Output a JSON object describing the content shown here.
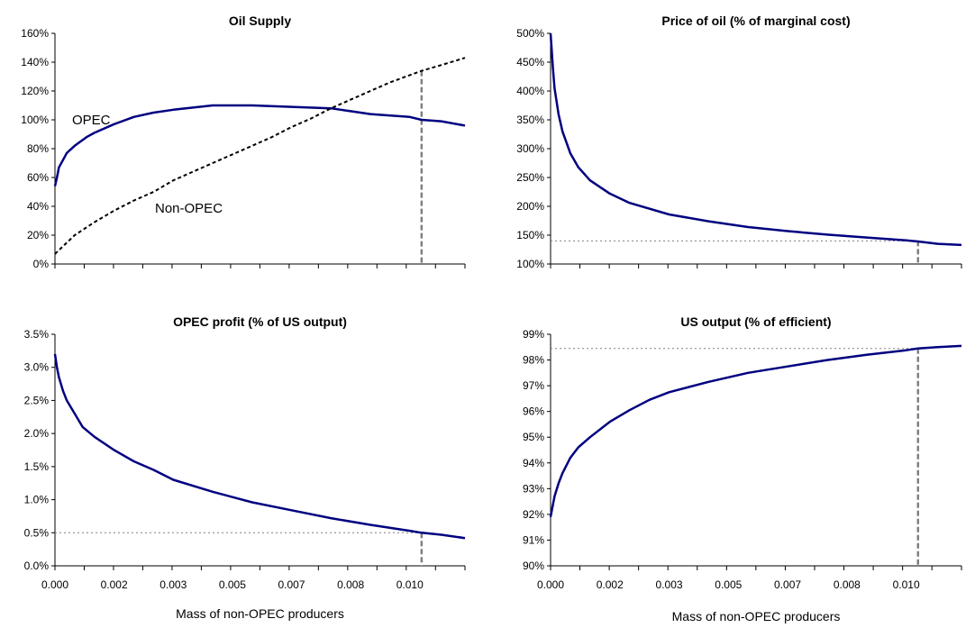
{
  "figure": {
    "colors": {
      "primary_line": "#000080",
      "secondary_line": "#000000",
      "marker_line": "#808080",
      "reference_line": "#808080"
    }
  },
  "chart_data": [
    {
      "type": "line",
      "title": "Oil Supply",
      "xlabel": "",
      "ylabel": "",
      "xlim": [
        0,
        0.0104
      ],
      "ylim": [
        0,
        160
      ],
      "x_tick_labels": [],
      "y_tick_labels": [
        "0%",
        "20%",
        "40%",
        "60%",
        "80%",
        "100%",
        "120%",
        "140%",
        "160%"
      ],
      "grid": false,
      "annotations": [
        "OPEC",
        "Non-OPEC"
      ],
      "marker_x": 0.0093,
      "series": [
        {
          "name": "OPEC",
          "style": "solid",
          "x": [
            0,
            5e-05,
            0.0001,
            0.0002,
            0.0003,
            0.0005,
            0.0008,
            0.001,
            0.0015,
            0.002,
            0.0025,
            0.003,
            0.004,
            0.005,
            0.006,
            0.007,
            0.0075,
            0.008,
            0.009,
            0.0093,
            0.0098,
            0.0104
          ],
          "values": [
            54,
            60,
            67,
            72,
            77,
            82,
            88,
            91,
            97,
            102,
            105,
            107,
            110,
            110,
            109,
            108,
            106,
            104,
            102,
            100,
            99,
            96
          ]
        },
        {
          "name": "Non-OPEC",
          "style": "dashed",
          "x": [
            0,
            0.0005,
            0.001,
            0.0015,
            0.002,
            0.0025,
            0.003,
            0.0035,
            0.004,
            0.0045,
            0.005,
            0.0055,
            0.006,
            0.0065,
            0.007,
            0.0075,
            0.008,
            0.0085,
            0.009,
            0.0093,
            0.0098,
            0.0104
          ],
          "values": [
            7,
            20,
            29,
            37,
            44,
            50,
            58,
            64,
            70,
            76,
            82,
            88,
            95,
            101,
            108,
            114,
            120,
            126,
            131,
            134,
            138,
            143
          ]
        }
      ]
    },
    {
      "type": "line",
      "title": "Price of oil (% of marginal cost)",
      "xlabel": "",
      "ylabel": "",
      "xlim": [
        0,
        0.0104
      ],
      "ylim": [
        100,
        500
      ],
      "x_tick_labels": [],
      "y_tick_labels": [
        "100%",
        "150%",
        "200%",
        "250%",
        "300%",
        "350%",
        "400%",
        "450%",
        "500%"
      ],
      "grid": false,
      "marker_x": 0.0093,
      "reference_y": 140,
      "series": [
        {
          "style": "solid",
          "x": [
            0,
            3e-05,
            6e-05,
            0.0001,
            0.0002,
            0.0003,
            0.0005,
            0.0007,
            0.001,
            0.0015,
            0.002,
            0.003,
            0.004,
            0.005,
            0.006,
            0.007,
            0.008,
            0.009,
            0.0093,
            0.0098,
            0.0104
          ],
          "values": [
            500,
            470,
            440,
            405,
            360,
            330,
            292,
            268,
            245,
            222,
            206,
            186,
            174,
            164,
            157,
            151,
            146,
            141,
            139,
            135,
            133
          ]
        }
      ]
    },
    {
      "type": "line",
      "title": "OPEC profit (% of US output)",
      "xlabel": "Mass of non-OPEC producers",
      "ylabel": "",
      "xlim": [
        0,
        0.0104
      ],
      "ylim": [
        0,
        3.5
      ],
      "x_tick_labels": [
        "0.000",
        "0.002",
        "0.003",
        "0.005",
        "0.007",
        "0.008",
        "0.010"
      ],
      "y_tick_labels": [
        "0.0%",
        "0.5%",
        "1.0%",
        "1.5%",
        "2.0%",
        "2.5%",
        "3.0%",
        "3.5%"
      ],
      "grid": false,
      "marker_x": 0.0093,
      "reference_y": 0.5,
      "series": [
        {
          "style": "solid",
          "x": [
            0,
            5e-05,
            0.0001,
            0.0002,
            0.0003,
            0.0005,
            0.0007,
            0.001,
            0.0015,
            0.002,
            0.0025,
            0.003,
            0.004,
            0.005,
            0.006,
            0.007,
            0.008,
            0.009,
            0.0093,
            0.0098,
            0.0104
          ],
          "values": [
            3.2,
            3.0,
            2.85,
            2.65,
            2.5,
            2.3,
            2.1,
            1.95,
            1.75,
            1.58,
            1.45,
            1.3,
            1.12,
            0.96,
            0.84,
            0.72,
            0.62,
            0.53,
            0.5,
            0.47,
            0.42
          ]
        }
      ]
    },
    {
      "type": "line",
      "title": "US output (% of efficient)",
      "xlabel": "Mass of non-OPEC producers",
      "ylabel": "",
      "xlim": [
        0,
        0.0104
      ],
      "ylim": [
        90,
        99
      ],
      "x_tick_labels": [
        "0.000",
        "0.002",
        "0.003",
        "0.005",
        "0.007",
        "0.008",
        "0.010"
      ],
      "y_tick_labels": [
        "90%",
        "91%",
        "92%",
        "93%",
        "94%",
        "95%",
        "96%",
        "97%",
        "98%",
        "99%"
      ],
      "grid": false,
      "marker_x": 0.0093,
      "reference_y": 98.45,
      "series": [
        {
          "style": "solid",
          "x": [
            0,
            5e-05,
            0.0001,
            0.0002,
            0.0003,
            0.0005,
            0.0007,
            0.001,
            0.0015,
            0.002,
            0.0025,
            0.003,
            0.004,
            0.005,
            0.006,
            0.007,
            0.008,
            0.009,
            0.0093,
            0.0098,
            0.0104
          ],
          "values": [
            91.9,
            92.3,
            92.7,
            93.2,
            93.6,
            94.2,
            94.6,
            95.0,
            95.6,
            96.05,
            96.45,
            96.75,
            97.15,
            97.5,
            97.75,
            98.0,
            98.2,
            98.38,
            98.45,
            98.5,
            98.55
          ]
        }
      ]
    }
  ]
}
